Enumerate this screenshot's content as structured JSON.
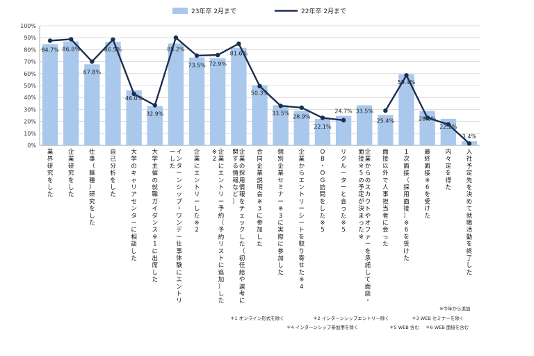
{
  "chart_data": {
    "type": "bar",
    "title": "",
    "ylim": [
      0,
      100
    ],
    "yticks": [
      "0%",
      "10%",
      "20%",
      "30%",
      "40%",
      "50%",
      "60%",
      "70%",
      "80%",
      "90%",
      "100%"
    ],
    "categories": [
      "業界研究をした",
      "企業研究をした",
      "仕事（職種）研究をした",
      "自己分析をした",
      "大学のキャリアセンターに相談した",
      "大学主催の就職ガイダンス※1に出席した",
      "インターンシップ・ワンデー仕事体験にエントリーした",
      "企業にエントリーした※2",
      "企業にエントリー予約（予約リストに追加）した※2",
      "企業の採用情報をチェックした（初任給や選考に関する情報など）",
      "合同企業説明会※3に参加した",
      "個別企業セミナー※3に実際に参加した",
      "企業からエントリーシートを取り寄せた※4",
      "OB・OG訪問をした※5",
      "リクルーターと会った※5",
      "企業からのスカウトやオファーを承諾して面談・面接※5の予定が決まった※",
      "面接以外で人事担当者に会った",
      "1次面接（採用面接）※6を受けた",
      "最終面接※6を受けた",
      "内々定を得た",
      "入社予定先を決めて就職活動を終了した"
    ],
    "series": [
      {
        "name": "23年卒 2月まで",
        "type": "bar",
        "color": "#a9c8ec",
        "values": [
          84.7,
          86.8,
          67.8,
          86.5,
          46.0,
          32.9,
          85.2,
          73.5,
          72.9,
          81.6,
          50.3,
          33.5,
          28.9,
          22.1,
          24.7,
          33.5,
          25.4,
          59.4,
          28.8,
          22.2,
          3.4
        ]
      },
      {
        "name": "22年卒 2月まで",
        "type": "line",
        "color": "#1c2f4e",
        "values": [
          87.5,
          88.7,
          70.0,
          88.5,
          43.0,
          33.5,
          90.0,
          75.0,
          75.5,
          85.0,
          49.5,
          33.0,
          31.5,
          23.0,
          21.0,
          null,
          29.0,
          58.5,
          23.0,
          17.5,
          1.5
        ]
      }
    ],
    "data_labels": [
      "84.7%",
      "86.8%",
      "67.8%",
      "86.5%",
      "46.0%",
      "32.9%",
      "85.2%",
      "73.5%",
      "72.9%",
      "81.6%",
      "50.3%",
      "33.5%",
      "28.9%",
      "22.1%",
      "24.7%",
      "33.5%",
      "25.4%",
      "59.4%",
      "28.8%",
      "22.2%",
      "3.4%"
    ]
  },
  "legend": {
    "bar_label": "23年卒 2月まで",
    "line_label": "22年卒 2月まで"
  },
  "footnotes": {
    "new_items": "※今年から追加",
    "row1": [
      "＊1 オンライン形式を除く",
      "＊2 インターンシップエントリー除く",
      "＊3 WEB セミナーを除く"
    ],
    "row2": [
      "＊4 インターンシップ参加用を除く",
      "＊5 WEB 含む",
      "＊6 WEB 面接を含む"
    ]
  }
}
